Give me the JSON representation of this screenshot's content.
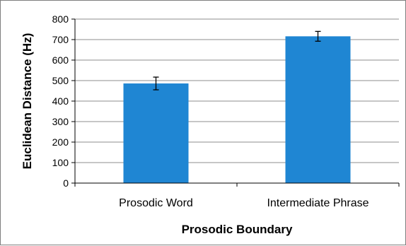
{
  "chart_data": {
    "type": "bar",
    "categories": [
      "Prosodic Word",
      "Intermediate Phrase"
    ],
    "values": [
      486,
      716
    ],
    "error_bars": [
      31,
      24
    ],
    "xlabel": "Prosodic Boundary",
    "ylabel": "Euclidean Distance (Hz)",
    "ylim": [
      0,
      800
    ],
    "yticks": [
      0,
      100,
      200,
      300,
      400,
      500,
      600,
      700,
      800
    ],
    "grid": true,
    "legend": "none",
    "bar_color": "#1f86d3",
    "grid_color": "#8c8c8c"
  }
}
